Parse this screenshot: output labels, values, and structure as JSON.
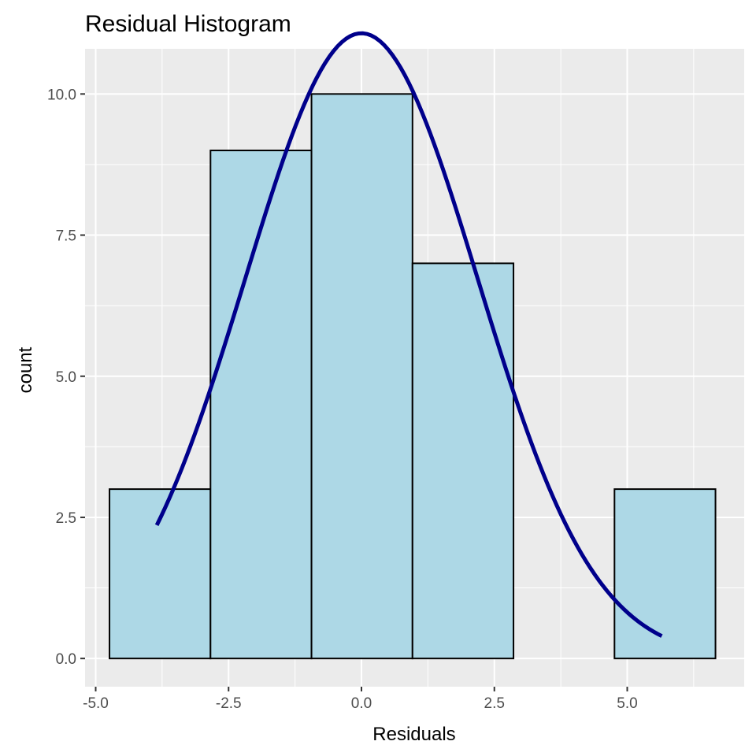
{
  "chart_data": {
    "type": "bar",
    "title": "Residual Histogram",
    "xlabel": "Residuals",
    "ylabel": "count",
    "xlim": [
      -5.2,
      7.2
    ],
    "ylim": [
      -0.5,
      10.8
    ],
    "x_ticks": [
      -5.0,
      -2.5,
      0.0,
      2.5,
      5.0
    ],
    "x_tick_labels": [
      "-5.0",
      "-2.5",
      "0.0",
      "2.5",
      "5.0"
    ],
    "y_ticks": [
      0.0,
      2.5,
      5.0,
      7.5,
      10.0
    ],
    "y_tick_labels": [
      "0.0",
      "2.5",
      "5.0",
      "7.5",
      "10.0"
    ],
    "grid": true,
    "bins": [
      {
        "x0": -4.74,
        "x1": -2.84,
        "count": 3
      },
      {
        "x0": -2.84,
        "x1": -0.94,
        "count": 9
      },
      {
        "x0": -0.94,
        "x1": 0.96,
        "count": 10
      },
      {
        "x0": 0.96,
        "x1": 2.86,
        "count": 7
      },
      {
        "x0": 2.86,
        "x1": 4.76,
        "count": 0
      },
      {
        "x0": 4.76,
        "x1": 6.66,
        "count": 3
      }
    ],
    "normal_curve": {
      "mean": 0.0,
      "sd": 2.19,
      "n": 32,
      "binwidth": 1.9,
      "x_from": -3.85,
      "x_to": 5.65
    },
    "colors": {
      "bar_fill": "#add8e6",
      "bar_stroke": "#000000",
      "curve": "#00008b",
      "panel": "#ebebeb",
      "grid": "#ffffff"
    }
  }
}
